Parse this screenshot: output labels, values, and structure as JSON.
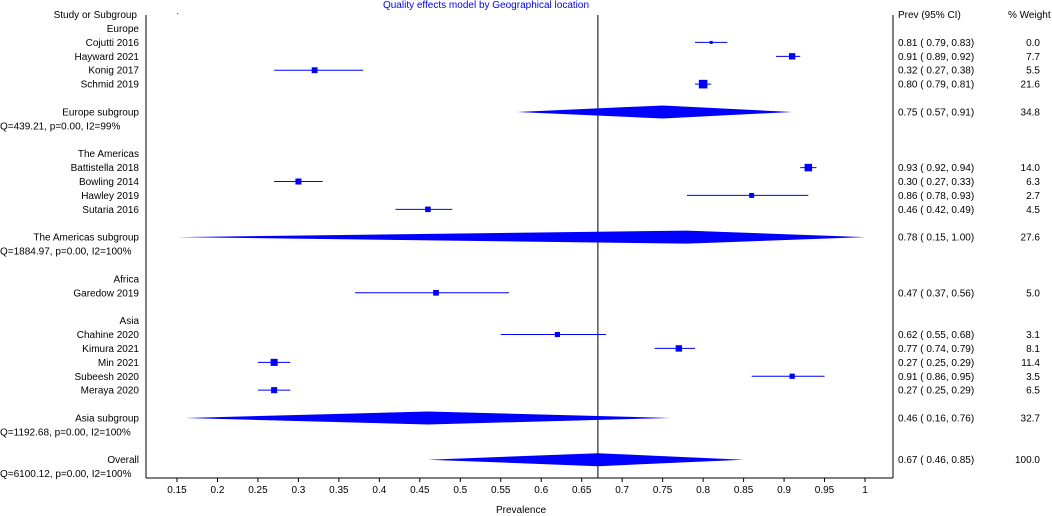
{
  "chart_data": {
    "type": "forest",
    "title": "Quality effects model by Geographical location",
    "xlabel": "Prevalence",
    "xlim": [
      0.15,
      1.0
    ],
    "xticks": [
      "0.15",
      "0.2",
      "0.25",
      "0.3",
      "0.35",
      "0.4",
      "0.45",
      "0.5",
      "0.55",
      "0.6",
      "0.65",
      "0.7",
      "0.75",
      "0.8",
      "0.85",
      "0.9",
      "0.95",
      "1"
    ],
    "reference_line": 0.67,
    "columns": {
      "label": "Study or Subgroup",
      "ci": "Prev (95% CI)",
      "weight": "% Weight"
    },
    "rows": [
      {
        "kind": "header",
        "label": "Europe"
      },
      {
        "kind": "study",
        "label": "Cojutti 2016",
        "est": 0.81,
        "lo": 0.79,
        "hi": 0.83,
        "weight": 0.0,
        "ci_text": "0.81  (  0.79,  0.83)",
        "weight_text": "0.0"
      },
      {
        "kind": "study",
        "label": "Hayward 2021",
        "est": 0.91,
        "lo": 0.89,
        "hi": 0.92,
        "weight": 7.7,
        "ci_text": "0.91  (  0.89,  0.92)",
        "weight_text": "7.7"
      },
      {
        "kind": "study",
        "label": "Konig 2017",
        "est": 0.32,
        "lo": 0.27,
        "hi": 0.38,
        "weight": 5.5,
        "ci_text": "0.32  (  0.27,  0.38)",
        "weight_text": "5.5"
      },
      {
        "kind": "study",
        "label": "Schmid 2019",
        "est": 0.8,
        "lo": 0.79,
        "hi": 0.81,
        "weight": 21.6,
        "ci_text": "0.80  (  0.79,  0.81)",
        "weight_text": "21.6"
      },
      {
        "kind": "blank"
      },
      {
        "kind": "subgroup",
        "label": "Europe subgroup",
        "est": 0.75,
        "lo": 0.57,
        "hi": 0.91,
        "ci_text": "0.75  (  0.57,  0.91)",
        "weight_text": "34.8"
      },
      {
        "kind": "stats",
        "label": "Q=439.21, p=0.00, I2=99%"
      },
      {
        "kind": "blank"
      },
      {
        "kind": "header",
        "label": "The Americas"
      },
      {
        "kind": "study",
        "label": "Battistella 2018",
        "est": 0.93,
        "lo": 0.92,
        "hi": 0.94,
        "weight": 14.0,
        "ci_text": "0.93  (  0.92,  0.94)",
        "weight_text": "14.0"
      },
      {
        "kind": "study",
        "label": "Bowling 2014",
        "est": 0.3,
        "lo": 0.27,
        "hi": 0.33,
        "weight": 6.3,
        "ci_text": "0.30  (  0.27,  0.33)",
        "weight_text": "6.3"
      },
      {
        "kind": "study",
        "label": "Hawley 2019",
        "est": 0.86,
        "lo": 0.78,
        "hi": 0.93,
        "weight": 2.7,
        "ci_text": "0.86  (  0.78,  0.93)",
        "weight_text": "2.7"
      },
      {
        "kind": "study",
        "label": "Sutaria 2016",
        "est": 0.46,
        "lo": 0.42,
        "hi": 0.49,
        "weight": 4.5,
        "ci_text": "0.46  (  0.42,  0.49)",
        "weight_text": "4.5"
      },
      {
        "kind": "blank"
      },
      {
        "kind": "subgroup",
        "label": "The Americas subgroup",
        "est": 0.78,
        "lo": 0.15,
        "hi": 1.0,
        "ci_text": "0.78  (  0.15,  1.00)",
        "weight_text": "27.6"
      },
      {
        "kind": "stats",
        "label": "Q=1884.97, p=0.00, I2=100%"
      },
      {
        "kind": "blank"
      },
      {
        "kind": "header",
        "label": "Africa"
      },
      {
        "kind": "study",
        "label": "Garedow 2019",
        "est": 0.47,
        "lo": 0.37,
        "hi": 0.56,
        "weight": 5.0,
        "ci_text": "0.47  (  0.37,  0.56)",
        "weight_text": "5.0"
      },
      {
        "kind": "blank"
      },
      {
        "kind": "header",
        "label": "Asia"
      },
      {
        "kind": "study",
        "label": "Chahine 2020",
        "est": 0.62,
        "lo": 0.55,
        "hi": 0.68,
        "weight": 3.1,
        "ci_text": "0.62  (  0.55,  0.68)",
        "weight_text": "3.1"
      },
      {
        "kind": "study",
        "label": "Kimura 2021",
        "est": 0.77,
        "lo": 0.74,
        "hi": 0.79,
        "weight": 8.1,
        "ci_text": "0.77  (  0.74,  0.79)",
        "weight_text": "8.1"
      },
      {
        "kind": "study",
        "label": "Min 2021",
        "est": 0.27,
        "lo": 0.25,
        "hi": 0.29,
        "weight": 11.4,
        "ci_text": "0.27  (  0.25,  0.29)",
        "weight_text": "11.4"
      },
      {
        "kind": "study",
        "label": "Subeesh 2020",
        "est": 0.91,
        "lo": 0.86,
        "hi": 0.95,
        "weight": 3.5,
        "ci_text": "0.91  (  0.86,  0.95)",
        "weight_text": "3.5"
      },
      {
        "kind": "study",
        "label": "Meraya 2020",
        "est": 0.27,
        "lo": 0.25,
        "hi": 0.29,
        "weight": 6.5,
        "ci_text": "0.27  (  0.25,  0.29)",
        "weight_text": "6.5"
      },
      {
        "kind": "blank"
      },
      {
        "kind": "subgroup",
        "label": "Asia subgroup",
        "est": 0.46,
        "lo": 0.16,
        "hi": 0.76,
        "ci_text": "0.46  (  0.16,  0.76)",
        "weight_text": "32.7"
      },
      {
        "kind": "stats",
        "label": "Q=1192.68, p=0.00, I2=100%"
      },
      {
        "kind": "blank"
      },
      {
        "kind": "subgroup",
        "label": "Overall",
        "est": 0.67,
        "lo": 0.46,
        "hi": 0.85,
        "ci_text": "0.67  (  0.46,  0.85)",
        "weight_text": "100.0"
      },
      {
        "kind": "stats",
        "label": "Q=6100.12, p=0.00, I2=100%"
      }
    ],
    "colors": {
      "marks": "#0000ff",
      "title": "#0000ff",
      "text": "#000000"
    }
  }
}
